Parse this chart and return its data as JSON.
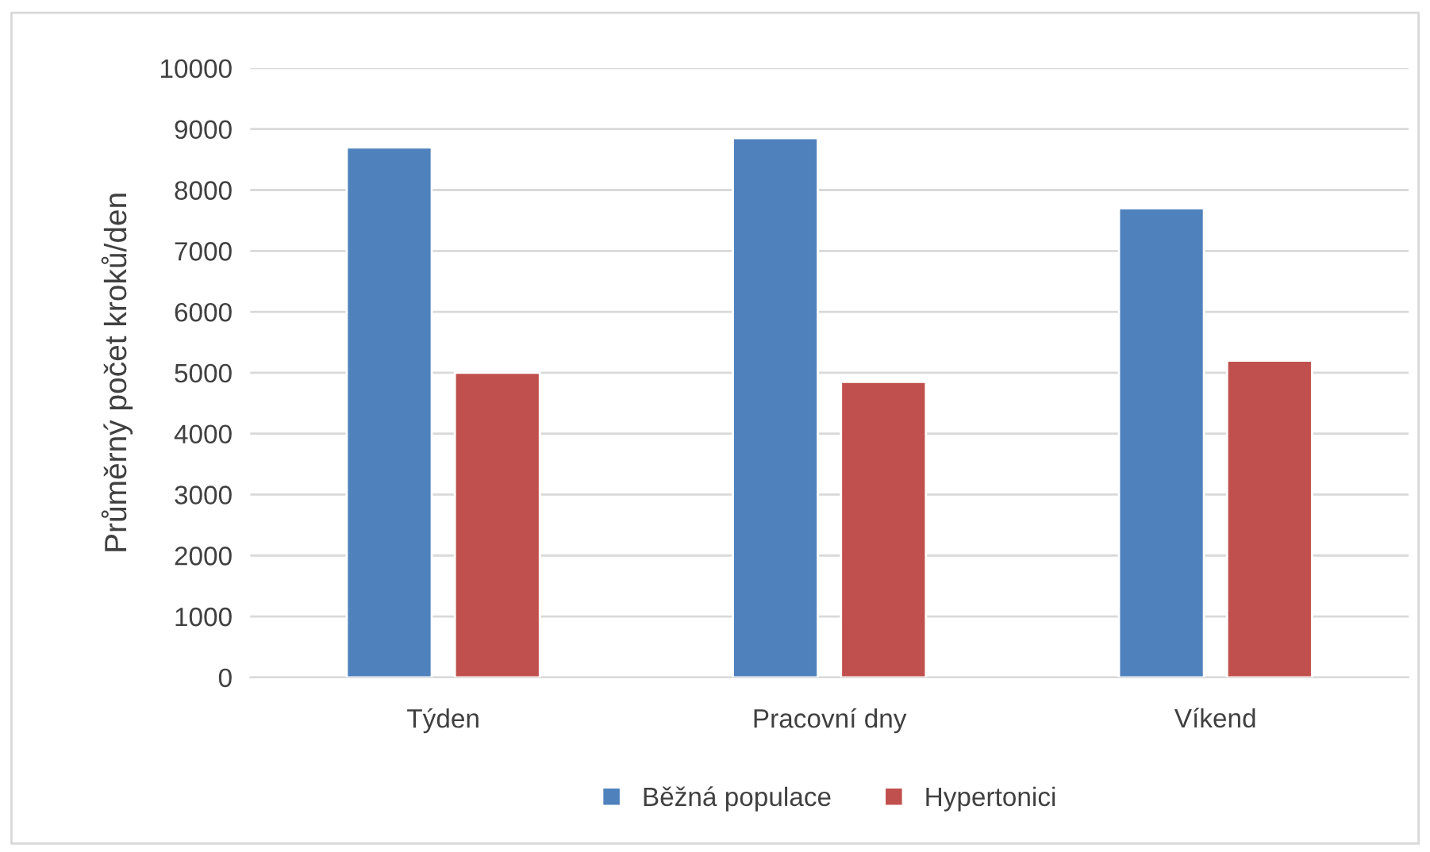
{
  "chart_data": {
    "type": "bar",
    "ylabel": "Průměrný počet kroků/den",
    "categories": [
      "Týden",
      "Pracovní dny",
      "Víkend"
    ],
    "series": [
      {
        "name": "Běžná populace",
        "color": "#4f81bd",
        "values": [
          8700,
          8850,
          7700
        ]
      },
      {
        "name": "Hypertonici",
        "color": "#c0504d",
        "values": [
          5000,
          4850,
          5200
        ]
      }
    ],
    "ylim": [
      0,
      10000
    ],
    "yticks": [
      0,
      1000,
      2000,
      3000,
      4000,
      5000,
      6000,
      7000,
      8000,
      9000,
      10000
    ],
    "grid": "y",
    "legend": "bottom"
  }
}
